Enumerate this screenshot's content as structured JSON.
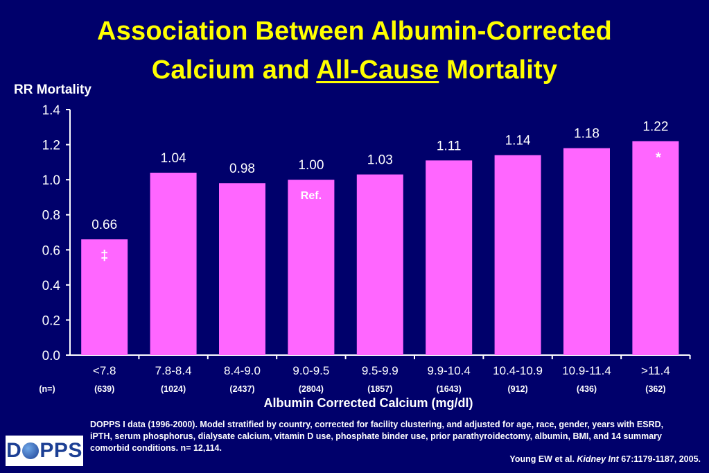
{
  "title_line1": "Association Between Albumin-Corrected",
  "title_line2_pre": "Calcium and ",
  "title_line2_underlined": "All-Cause",
  "title_line2_post": " Mortality",
  "colors": {
    "background": "#00006b",
    "title": "#ffff00",
    "bar": "#ff66ff",
    "text": "#ffffff"
  },
  "chart_data": {
    "type": "bar",
    "ylabel": "RR Mortality",
    "xlabel": "Albumin Corrected Calcium (mg/dl)",
    "ylim": [
      0,
      1.4
    ],
    "yticks": [
      "0.0",
      "0.2",
      "0.4",
      "0.6",
      "0.8",
      "1.0",
      "1.2",
      "1.4"
    ],
    "categories": [
      "<7.8",
      "7.8-8.4",
      "8.4-9.0",
      "9.0-9.5",
      "9.5-9.9",
      "9.9-10.4",
      "10.4-10.9",
      "10.9-11.4",
      ">11.4"
    ],
    "values": [
      0.66,
      1.04,
      0.98,
      1.0,
      1.03,
      1.11,
      1.14,
      1.18,
      1.22
    ],
    "value_labels": [
      "0.66",
      "1.04",
      "0.98",
      "1.00",
      "1.03",
      "1.11",
      "1.14",
      "1.18",
      "1.22"
    ],
    "bar_marks": [
      "‡",
      "",
      "",
      "Ref.",
      "",
      "",
      "",
      "",
      "*"
    ],
    "n_label": "(n=)",
    "n_values": [
      "(639)",
      "(1024)",
      "(2437)",
      "(2804)",
      "(1857)",
      "(1643)",
      "(912)",
      "(436)",
      "(362)"
    ]
  },
  "footnote": "DOPPS I data (1996-2000).  Model stratified by country, corrected for facility clustering, and adjusted for age, race, gender, years with ESRD, iPTH, serum phosphorus, dialysate calcium, vitamin D use, phosphate binder use, prior parathyroidectomy, albumin, BMI, and 14 summary comorbid conditions. n= 12,114.",
  "citation_pre": "Young EW et al. ",
  "citation_journal": "Kidney Int",
  "citation_post": " 67:1179-1187, 2005.",
  "logo_text_left": "D",
  "logo_text_right": "PPS"
}
